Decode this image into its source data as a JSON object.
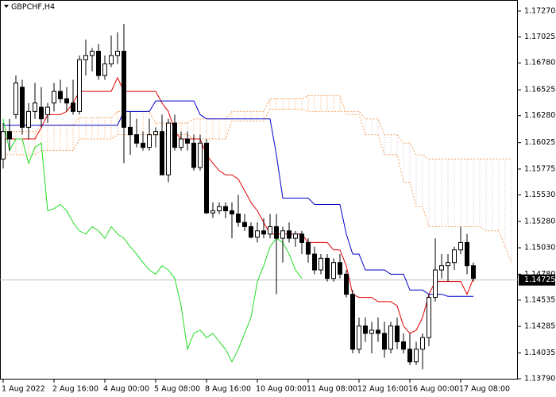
{
  "chart_data": {
    "type": "candlestick",
    "title": "GBPCHF,H4",
    "up_color": "#ffffff",
    "down_color": "#000000",
    "categories": [
      "1 Aug 2022",
      null,
      null,
      null,
      null,
      null,
      null,
      null,
      "2 Aug 16:00",
      null,
      null,
      null,
      null,
      null,
      null,
      null,
      "4 Aug 00:00",
      null,
      null,
      null,
      null,
      null,
      null,
      null,
      "5 Aug 08:00",
      null,
      null,
      null,
      null,
      null,
      null,
      null,
      "8 Aug 16:00",
      null,
      null,
      null,
      null,
      null,
      null,
      null,
      "10 Aug 00:00",
      null,
      null,
      null,
      null,
      null,
      null,
      null,
      "11 Aug 08:00",
      null,
      null,
      null,
      null,
      null,
      null,
      null,
      "12 Aug 16:00",
      null,
      null,
      null,
      null,
      null,
      null,
      null,
      "16 Aug 00:00",
      null,
      null,
      null,
      null,
      null,
      null,
      null,
      "17 Aug 08:00",
      null,
      null,
      null,
      null,
      null,
      null,
      null,
      null
    ],
    "open": [
      1.1587,
      1.1613,
      1.1629,
      1.1655,
      1.1617,
      1.1632,
      1.1636,
      1.1629,
      1.164,
      1.1651,
      1.1644,
      1.164,
      1.1632,
      1.1681,
      1.1685,
      1.1689,
      1.1666,
      1.1677,
      1.1685,
      1.1689,
      1.1617,
      1.161,
      1.1602,
      1.1598,
      1.161,
      1.1613,
      1.1572,
      1.1621,
      1.1598,
      1.1606,
      1.1602,
      1.1579,
      1.1602,
      1.1536,
      1.1538,
      1.1542,
      1.1538,
      1.1535,
      1.1527,
      1.1523,
      1.1513,
      1.1519,
      1.1516,
      1.1523,
      1.1512,
      1.1519,
      1.1512,
      1.1516,
      1.1508,
      1.1497,
      1.1482,
      1.1493,
      1.1474,
      1.1489,
      1.1478,
      1.1459,
      1.1407,
      1.1429,
      1.1422,
      1.1425,
      1.1422,
      1.1407,
      1.1429,
      1.1414,
      1.1407,
      1.1395,
      1.1407,
      1.1418,
      1.1456,
      1.1482,
      1.1486,
      1.1489,
      1.1501,
      1.1508,
      1.1486,
      null,
      null,
      null,
      null,
      null,
      null
    ],
    "high": [
      1.1621,
      1.1625,
      1.1666,
      1.1662,
      1.164,
      1.1659,
      1.1655,
      1.164,
      1.1659,
      1.1662,
      1.1655,
      1.1662,
      1.1685,
      1.17,
      1.1692,
      1.1696,
      1.1685,
      1.1704,
      1.1707,
      1.1715,
      1.1632,
      1.1625,
      1.1613,
      1.1625,
      1.1617,
      1.1629,
      1.1625,
      1.1629,
      1.1613,
      1.1613,
      1.161,
      1.161,
      1.1606,
      1.1546,
      1.1546,
      1.1546,
      1.1546,
      1.1553,
      1.1535,
      1.1527,
      1.1527,
      1.1531,
      1.1535,
      1.1535,
      1.1523,
      1.1527,
      1.1519,
      1.1519,
      1.1512,
      1.1504,
      1.1497,
      1.1497,
      1.1493,
      1.1497,
      1.1482,
      1.1463,
      1.1437,
      1.1437,
      1.1433,
      1.1437,
      1.1433,
      1.1433,
      1.1437,
      1.1422,
      1.1422,
      1.1414,
      1.1422,
      1.1459,
      1.1512,
      1.1497,
      1.1497,
      1.1504,
      1.1523,
      1.1516,
      1.1489,
      null,
      null,
      null,
      null,
      null,
      null
    ],
    "low": [
      1.1578,
      1.1595,
      1.1625,
      1.161,
      1.1606,
      1.1625,
      1.1617,
      1.1621,
      1.1632,
      1.164,
      1.1632,
      1.1629,
      1.1629,
      1.1666,
      1.167,
      1.1662,
      1.1662,
      1.1674,
      1.1677,
      1.1583,
      1.1591,
      1.1598,
      1.1595,
      1.1595,
      1.1598,
      1.1572,
      1.1565,
      1.1595,
      1.1595,
      1.1595,
      1.1576,
      1.1576,
      1.1535,
      1.1531,
      1.1535,
      1.1531,
      1.1512,
      1.1523,
      1.1519,
      1.1512,
      1.1508,
      1.1512,
      1.1512,
      1.1459,
      1.1489,
      1.1508,
      1.1504,
      1.1497,
      1.1489,
      1.1478,
      1.1478,
      1.1471,
      1.1471,
      1.1474,
      1.1456,
      1.1403,
      1.1403,
      1.1414,
      1.1403,
      1.1414,
      1.1399,
      1.1403,
      1.1407,
      1.1403,
      1.1392,
      1.1392,
      1.1388,
      1.141,
      1.1452,
      1.1474,
      1.1471,
      1.1482,
      1.1497,
      1.1478,
      1.1471,
      null,
      null,
      null,
      null,
      null,
      null
    ],
    "close": [
      1.1613,
      1.1606,
      1.1659,
      1.1617,
      1.1632,
      1.164,
      1.1625,
      1.1636,
      1.1651,
      1.1644,
      1.164,
      1.1632,
      1.1681,
      1.1685,
      1.1689,
      1.1666,
      1.1677,
      1.1685,
      1.1689,
      1.1617,
      1.161,
      1.1602,
      1.1598,
      1.161,
      1.1613,
      1.1572,
      1.1621,
      1.1598,
      1.1606,
      1.1602,
      1.1579,
      1.1602,
      1.1536,
      1.1538,
      1.1542,
      1.1538,
      1.1535,
      1.1527,
      1.1523,
      1.1513,
      1.1519,
      1.1516,
      1.1523,
      1.1512,
      1.1519,
      1.1512,
      1.1516,
      1.1508,
      1.1497,
      1.1482,
      1.1493,
      1.1474,
      1.1489,
      1.1478,
      1.1459,
      1.1407,
      1.1429,
      1.1422,
      1.1425,
      1.1422,
      1.1407,
      1.1429,
      1.1414,
      1.1407,
      1.1395,
      1.1407,
      1.1418,
      1.1456,
      1.1482,
      1.1486,
      1.1489,
      1.1501,
      1.1508,
      1.1486,
      1.1474,
      null,
      null,
      null,
      null,
      null,
      null
    ],
    "lines": [
      {
        "color": "#e00000",
        "values": [
          1.1606,
          1.1606,
          1.1606,
          1.1606,
          1.1606,
          1.1606,
          1.1617,
          1.1629,
          1.1629,
          1.1629,
          1.1632,
          1.164,
          1.1651,
          1.1651,
          1.1651,
          1.1651,
          1.1651,
          1.1651,
          1.1664,
          1.1651,
          1.1651,
          1.1651,
          1.1651,
          1.1651,
          1.1651,
          1.164,
          1.1632,
          1.1613,
          1.1606,
          1.1606,
          1.1606,
          1.1606,
          1.1591,
          1.1583,
          1.1576,
          1.1572,
          1.1572,
          1.1568,
          1.1557,
          1.1546,
          1.1538,
          1.1527,
          1.1516,
          1.1516,
          1.1516,
          1.1516,
          1.1516,
          1.1516,
          1.1508,
          1.1508,
          1.1508,
          1.1508,
          1.1501,
          1.1501,
          1.1486,
          1.1459,
          1.1456,
          1.1456,
          1.1456,
          1.1452,
          1.1452,
          1.1452,
          1.1448,
          1.1429,
          1.1422,
          1.1425,
          1.1437,
          1.1459,
          1.1471,
          1.1471,
          1.1471,
          1.1471,
          1.1471,
          1.1459,
          1.1474,
          null,
          null,
          null,
          null,
          null,
          null
        ]
      },
      {
        "color": "#0000cc",
        "values": [
          1.1619,
          1.1619,
          1.1619,
          1.1619,
          1.1619,
          1.1619,
          1.1619,
          1.1619,
          1.1619,
          1.1619,
          1.1619,
          1.1619,
          1.1619,
          1.1619,
          1.1619,
          1.1619,
          1.1619,
          1.1619,
          1.1619,
          1.1632,
          1.1632,
          1.1632,
          1.1632,
          1.1632,
          1.1642,
          1.1642,
          1.1642,
          1.1642,
          1.1642,
          1.1642,
          1.1642,
          1.1629,
          1.1625,
          1.1625,
          1.1625,
          1.1625,
          1.1625,
          1.1625,
          1.1625,
          1.1625,
          1.1625,
          1.1625,
          1.1625,
          1.1591,
          1.155,
          1.155,
          1.155,
          1.155,
          1.155,
          1.1544,
          1.1544,
          1.1544,
          1.1544,
          1.1544,
          1.1516,
          1.1497,
          1.1497,
          1.1482,
          1.1482,
          1.1482,
          1.1482,
          1.1478,
          1.1478,
          1.1478,
          1.1463,
          1.1463,
          1.1463,
          1.1459,
          1.1459,
          1.1459,
          1.1457,
          1.1457,
          1.1457,
          1.1457,
          1.1457,
          null,
          null,
          null,
          null,
          null,
          null
        ]
      },
      {
        "color": "#22dd22",
        "values": [
          1.1625,
          1.1595,
          1.1606,
          1.1606,
          1.1583,
          1.1598,
          1.1602,
          1.1538,
          1.154,
          1.1544,
          1.1538,
          1.1527,
          1.1519,
          1.1516,
          1.1523,
          1.1519,
          1.1512,
          1.1523,
          1.1516,
          1.1512,
          1.1504,
          1.1497,
          1.1489,
          1.1482,
          1.1478,
          1.1486,
          1.1482,
          1.1474,
          1.1448,
          1.1407,
          1.1422,
          1.1425,
          1.1418,
          1.1422,
          1.1414,
          1.1407,
          1.1395,
          1.1407,
          1.1422,
          1.1437,
          1.1471,
          1.1486,
          1.1504,
          1.1512,
          1.1508,
          1.1497,
          1.1482,
          1.1474,
          null,
          null,
          null,
          null,
          null,
          null,
          null,
          null,
          null,
          null,
          null,
          null,
          null,
          null,
          null,
          null,
          null,
          null,
          null,
          null,
          null,
          null,
          null,
          null,
          null,
          null,
          null,
          null,
          null,
          null,
          null,
          null,
          null
        ]
      }
    ],
    "cloud": {
      "up_color": "#f4a460",
      "down_color": "#d8bfd8",
      "span_a": [
        1.1613,
        1.1613,
        1.1613,
        1.1613,
        1.1613,
        1.1613,
        1.1619,
        1.1619,
        1.1619,
        1.1619,
        1.1619,
        1.1619,
        1.1626,
        1.1626,
        1.1626,
        1.1626,
        1.1626,
        1.1626,
        1.1632,
        1.1632,
        1.1632,
        1.1632,
        1.1632,
        1.1632,
        1.1621,
        1.1621,
        1.1621,
        1.1621,
        1.1621,
        1.1621,
        1.1625,
        1.1625,
        1.1625,
        1.1625,
        1.1625,
        1.1625,
        1.1632,
        1.1632,
        1.1632,
        1.1632,
        1.1632,
        1.1632,
        1.1644,
        1.1644,
        1.1644,
        1.1644,
        1.1644,
        1.1644,
        1.1647,
        1.1647,
        1.1647,
        1.1647,
        1.1647,
        1.1647,
        1.1629,
        1.1629,
        1.1629,
        1.161,
        1.161,
        1.161,
        1.1591,
        1.1591,
        1.1591,
        1.1565,
        1.1565,
        1.1542,
        1.1542,
        1.1523,
        1.1523,
        1.1523,
        1.1523,
        1.1523,
        1.1523,
        1.1523,
        1.1523,
        1.1523,
        1.1519,
        1.1519,
        1.1519,
        1.1504,
        1.1489
      ],
      "span_b": [
        1.1591,
        1.1591,
        1.1591,
        1.1591,
        1.1591,
        1.1591,
        1.1595,
        1.1595,
        1.1595,
        1.1595,
        1.1595,
        1.1595,
        1.1606,
        1.1606,
        1.1606,
        1.1606,
        1.1606,
        1.1606,
        1.161,
        1.161,
        1.161,
        1.161,
        1.161,
        1.161,
        1.161,
        1.161,
        1.161,
        1.161,
        1.161,
        1.161,
        1.1606,
        1.1606,
        1.1606,
        1.1606,
        1.1606,
        1.1606,
        1.1623,
        1.1623,
        1.1623,
        1.1623,
        1.1623,
        1.1623,
        1.1634,
        1.1634,
        1.1634,
        1.1634,
        1.1634,
        1.1634,
        1.1632,
        1.1632,
        1.1632,
        1.1632,
        1.1632,
        1.1632,
        1.1632,
        1.1632,
        1.1632,
        1.1625,
        1.1625,
        1.1625,
        1.161,
        1.161,
        1.161,
        1.1602,
        1.1602,
        1.1591,
        1.1591,
        1.1587,
        1.1587,
        1.1587,
        1.1587,
        1.1587,
        1.1587,
        1.1587,
        1.1587,
        1.1587,
        1.1587,
        1.1587,
        1.1587,
        1.1587,
        1.1587
      ]
    },
    "last_price": 1.14725,
    "price_line_color": "#c0c0c0",
    "ylim": [
      1.13783,
      1.17375
    ],
    "yticks": [
      {
        "value": 1.1727,
        "label": "1.17270"
      },
      1.17025,
      {
        "value": 1.1678,
        "label": "1.16780"
      },
      1.16525,
      {
        "value": 1.1628,
        "label": "1.16280"
      },
      1.16025,
      1.15775,
      {
        "value": 1.1553,
        "label": "1.15530"
      },
      {
        "value": 1.1528,
        "label": "1.15280"
      },
      {
        "value": 1.1503,
        "label": "1.15030"
      },
      {
        "value": 1.1478,
        "label": "1.14780"
      },
      1.14535,
      1.14285,
      1.14035,
      {
        "value": 1.1379,
        "label": "1.13790"
      }
    ],
    "grid": false
  }
}
